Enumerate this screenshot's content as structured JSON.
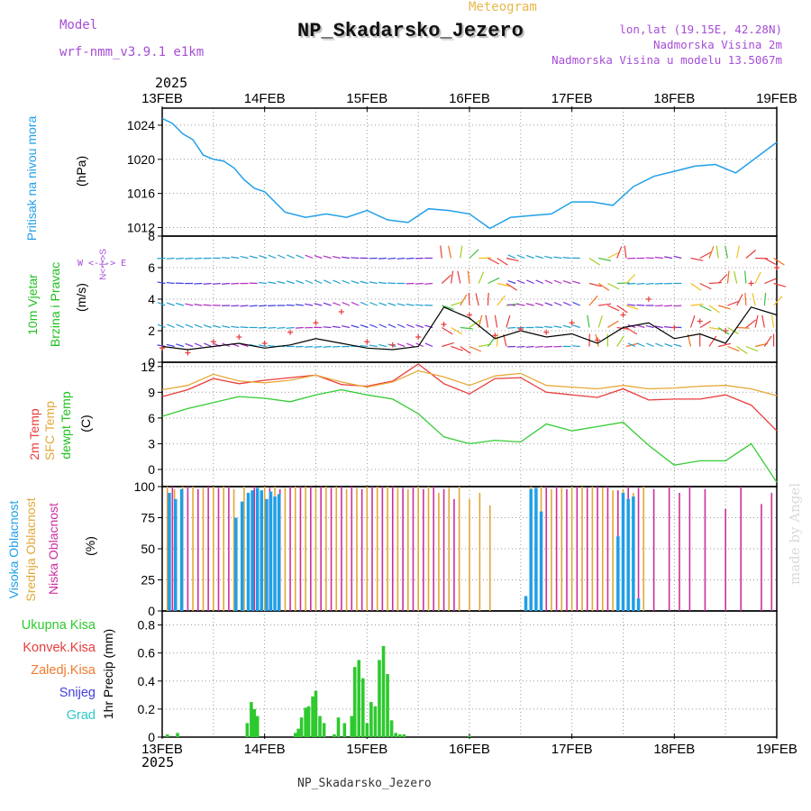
{
  "header": {
    "model_label": "Model",
    "model_name": "wrf-nmm_v3.9.1 e1km",
    "title": "NP_Skadarsko_Jezero",
    "subtitle": "Meteogram",
    "lonlat": "lon,lat (19.15E, 42.28N)",
    "altitude": "Nadmorska Visina 2m",
    "model_altitude": "Nadmorska Visina u modelu 13.5067m"
  },
  "time_axis": {
    "year_top": "2025",
    "year_bottom": "2025",
    "ticks": [
      "13FEB",
      "14FEB",
      "15FEB",
      "16FEB",
      "17FEB",
      "18FEB",
      "19FEB"
    ]
  },
  "footer_title": "NP_Skadarsko_Jezero",
  "credit": "made by Angel",
  "panel_labels": {
    "pressure": {
      "line1": "Pritisak na nivou mora",
      "unit": "(hPa)",
      "color": "#22a0e8"
    },
    "wind": {
      "line1": "10m Vjetar",
      "line2": "Brzina i Pravac",
      "unit": "(m/s)",
      "compass": "W <-|-> E",
      "compass_ns": "N<-|->S"
    },
    "temp": {
      "line1": "2m Temp",
      "line2": "SFC Temp",
      "line3": "dewpt Temp",
      "unit": "(C)"
    },
    "cloud": {
      "line1": "Visoka Oblacnost",
      "line2": "Srednja Oblacnost",
      "line3": "Niska Oblacnost",
      "unit": "(%)"
    },
    "precip": {
      "unit": "1hr Precip (mm)"
    }
  },
  "precip_legend": [
    {
      "label": "Ukupna Kisa",
      "color": "#2ec92e"
    },
    {
      "label": "Konvek.Kisa",
      "color": "#e83c3c"
    },
    {
      "label": "Zaledj.Kisa",
      "color": "#f07a30"
    },
    {
      "label": "Snijeg",
      "color": "#4040e0"
    },
    {
      "label": "Grad",
      "color": "#30c8c8"
    }
  ],
  "chart_data": [
    {
      "type": "line",
      "name": "pressure",
      "ylim": [
        1011,
        1026
      ],
      "yticks": [
        1012,
        1016,
        1020,
        1024
      ],
      "x_days": [
        0,
        0.1,
        0.2,
        0.3,
        0.4,
        0.5,
        0.6,
        0.7,
        0.8,
        0.9,
        1.0,
        1.2,
        1.4,
        1.6,
        1.8,
        2.0,
        2.2,
        2.4,
        2.6,
        2.8,
        3.0,
        3.2,
        3.4,
        3.6,
        3.8,
        4.0,
        4.2,
        4.4,
        4.6,
        4.8,
        5.0,
        5.2,
        5.4,
        5.6,
        5.8,
        6.0
      ],
      "values": [
        1024.8,
        1024.2,
        1023.0,
        1022.3,
        1020.5,
        1020.0,
        1019.8,
        1019.0,
        1017.6,
        1016.6,
        1016.2,
        1013.8,
        1013.2,
        1013.6,
        1013.2,
        1014.0,
        1012.9,
        1012.6,
        1014.2,
        1014.0,
        1013.6,
        1011.9,
        1013.2,
        1013.4,
        1013.6,
        1015.0,
        1015.0,
        1014.6,
        1016.8,
        1018.0,
        1018.6,
        1019.2,
        1019.4,
        1018.4,
        1020.2,
        1022.0
      ],
      "grid": true,
      "color": "#22a0e8"
    },
    {
      "type": "line",
      "name": "wind_speed",
      "ylim": [
        0,
        8
      ],
      "yticks": [
        0,
        2,
        4,
        6,
        8
      ],
      "x_days": [
        0,
        0.25,
        0.5,
        0.75,
        1.0,
        1.25,
        1.5,
        1.75,
        2.0,
        2.25,
        2.5,
        2.75,
        3.0,
        3.25,
        3.5,
        3.75,
        4.0,
        4.25,
        4.5,
        4.75,
        5.0,
        5.25,
        5.5,
        5.75,
        6.0
      ],
      "values": [
        1.0,
        0.8,
        1.0,
        1.2,
        0.9,
        1.1,
        1.5,
        1.2,
        0.9,
        0.8,
        1.0,
        3.5,
        2.8,
        1.5,
        2.0,
        1.6,
        1.8,
        1.2,
        2.2,
        2.5,
        1.5,
        1.8,
        1.2,
        3.5,
        3.0
      ],
      "gust_values": [
        0.9,
        0.6,
        1.3,
        1.6,
        1.2,
        1.9,
        2.5,
        3.2,
        1.3,
        1.1,
        1.6,
        2.4,
        3.0,
        1.7,
        2.1,
        1.9,
        2.5,
        1.4,
        3.0,
        4.0,
        2.2,
        2.6,
        2.0,
        5.0,
        6.0
      ],
      "grid": true,
      "colors": {
        "speed": "#000000",
        "gust": "#e83c3c"
      }
    },
    {
      "type": "line",
      "name": "temperature",
      "ylim": [
        -2,
        12.5
      ],
      "yticks": [
        0,
        3,
        6,
        9,
        12
      ],
      "x_days": [
        0,
        0.25,
        0.5,
        0.75,
        1.0,
        1.25,
        1.5,
        1.75,
        2.0,
        2.25,
        2.5,
        2.75,
        3.0,
        3.25,
        3.5,
        3.75,
        4.0,
        4.25,
        4.5,
        4.75,
        5.0,
        5.25,
        5.5,
        5.75,
        6.0
      ],
      "series": [
        {
          "name": "2m Temp",
          "color": "#e83c3c",
          "values": [
            8.5,
            9.3,
            10.6,
            10.0,
            10.4,
            10.7,
            11.0,
            9.9,
            9.7,
            10.3,
            12.3,
            10.0,
            8.8,
            10.6,
            10.7,
            9.0,
            8.7,
            8.4,
            9.4,
            8.1,
            8.2,
            8.2,
            8.7,
            7.5,
            4.5
          ]
        },
        {
          "name": "SFC Temp",
          "color": "#e8a838",
          "values": [
            9.3,
            9.8,
            11.1,
            10.3,
            10.1,
            10.4,
            11.0,
            10.2,
            9.6,
            10.2,
            11.5,
            10.8,
            9.8,
            10.9,
            11.2,
            9.8,
            9.6,
            9.4,
            9.8,
            9.4,
            9.5,
            9.7,
            9.8,
            9.4,
            8.6
          ]
        },
        {
          "name": "dewpt Temp",
          "color": "#33cc33",
          "values": [
            6.2,
            7.1,
            7.8,
            8.5,
            8.3,
            7.9,
            8.7,
            9.3,
            8.7,
            8.2,
            6.5,
            3.8,
            3.0,
            3.4,
            3.2,
            5.3,
            4.5,
            5.0,
            5.5,
            2.8,
            0.5,
            1.0,
            1.0,
            3.0,
            -1.5
          ]
        }
      ],
      "grid": true
    },
    {
      "type": "bar",
      "name": "cloud_cover",
      "ylim": [
        0,
        100
      ],
      "yticks": [
        0,
        25,
        50,
        75,
        100
      ],
      "series": [
        {
          "name": "Visoka Oblacnost",
          "color": "#1f9fe6"
        },
        {
          "name": "Srednja Oblacnost",
          "color": "#e0a838"
        },
        {
          "name": "Niska Oblacnost",
          "color": "#cc2f9f"
        }
      ],
      "high_cloud": {
        "x_days": [
          0.07,
          0.13,
          0.19,
          0.72,
          0.78,
          0.84,
          0.88,
          0.93,
          0.97,
          1.02,
          1.06,
          1.1,
          1.14,
          3.55,
          3.6,
          3.65,
          3.7,
          4.45,
          4.5,
          4.55,
          4.6,
          4.65
        ],
        "values": [
          95,
          90,
          98,
          75,
          88,
          95,
          97,
          99,
          97,
          90,
          96,
          92,
          94,
          12,
          98,
          99,
          80,
          60,
          95,
          90,
          92,
          10
        ]
      },
      "mid_cloud": {
        "x_days": [
          0.05,
          0.12,
          0.2,
          0.3,
          0.4,
          0.5,
          0.6,
          0.7,
          0.8,
          0.9,
          1.0,
          1.1,
          1.2,
          1.3,
          1.4,
          1.5,
          1.6,
          1.7,
          1.8,
          1.9,
          2.0,
          2.1,
          2.2,
          2.3,
          2.4,
          2.5,
          2.6,
          2.7,
          2.8,
          2.9,
          3.0,
          3.1,
          3.2,
          3.6,
          3.7,
          3.8,
          3.9,
          4.0,
          4.1,
          4.2,
          4.3,
          4.4,
          4.5,
          4.6,
          4.7
        ],
        "values": [
          100,
          98,
          100,
          100,
          99,
          100,
          100,
          98,
          100,
          100,
          100,
          100,
          99,
          100,
          100,
          99,
          100,
          100,
          98,
          99,
          100,
          100,
          100,
          99,
          98,
          100,
          100,
          95,
          99,
          100,
          90,
          95,
          85,
          100,
          100,
          98,
          99,
          100,
          100,
          100,
          99,
          97,
          98,
          95,
          100
        ]
      },
      "low_cloud": {
        "x_days": [
          0.1,
          0.25,
          0.35,
          0.45,
          0.55,
          0.65,
          0.9,
          1.05,
          1.15,
          1.25,
          1.35,
          1.45,
          1.55,
          1.65,
          1.75,
          1.85,
          1.95,
          2.05,
          2.15,
          2.25,
          2.35,
          2.45,
          2.55,
          2.65,
          2.75,
          2.85,
          3.65,
          3.75,
          3.85,
          3.95,
          4.05,
          4.15,
          4.25,
          4.35,
          4.45,
          4.55,
          4.65,
          4.8,
          4.95,
          5.05,
          5.15,
          5.3,
          5.5,
          5.65,
          5.85,
          5.95
        ],
        "values": [
          100,
          100,
          98,
          100,
          99,
          100,
          100,
          99,
          98,
          100,
          100,
          100,
          100,
          99,
          100,
          100,
          98,
          100,
          100,
          100,
          99,
          100,
          98,
          100,
          98,
          90,
          99,
          100,
          100,
          98,
          100,
          99,
          100,
          100,
          97,
          100,
          99,
          98,
          100,
          95,
          100,
          98,
          82,
          100,
          86,
          95
        ]
      },
      "grid": true
    },
    {
      "type": "bar",
      "name": "precipitation",
      "ylim": [
        0,
        0.9
      ],
      "yticks": [
        0,
        0.2,
        0.4,
        0.6,
        0.8
      ],
      "x_days": [
        0.05,
        0.15,
        0.83,
        0.87,
        0.9,
        0.93,
        1.3,
        1.33,
        1.36,
        1.4,
        1.43,
        1.47,
        1.5,
        1.54,
        1.58,
        1.68,
        1.72,
        1.78,
        1.85,
        1.88,
        1.92,
        1.96,
        2.0,
        2.04,
        2.08,
        2.12,
        2.16,
        2.2,
        2.24,
        2.28,
        2.32,
        2.36,
        3.0
      ],
      "values": [
        0.02,
        0.03,
        0.1,
        0.25,
        0.2,
        0.15,
        0.03,
        0.06,
        0.14,
        0.21,
        0.22,
        0.29,
        0.33,
        0.15,
        0.1,
        0.02,
        0.14,
        0.1,
        0.15,
        0.5,
        0.55,
        0.42,
        0.1,
        0.25,
        0.22,
        0.55,
        0.65,
        0.45,
        0.12,
        0.03,
        0.02,
        0.02,
        0.01
      ],
      "color": "#2ec92e",
      "grid": true
    }
  ]
}
